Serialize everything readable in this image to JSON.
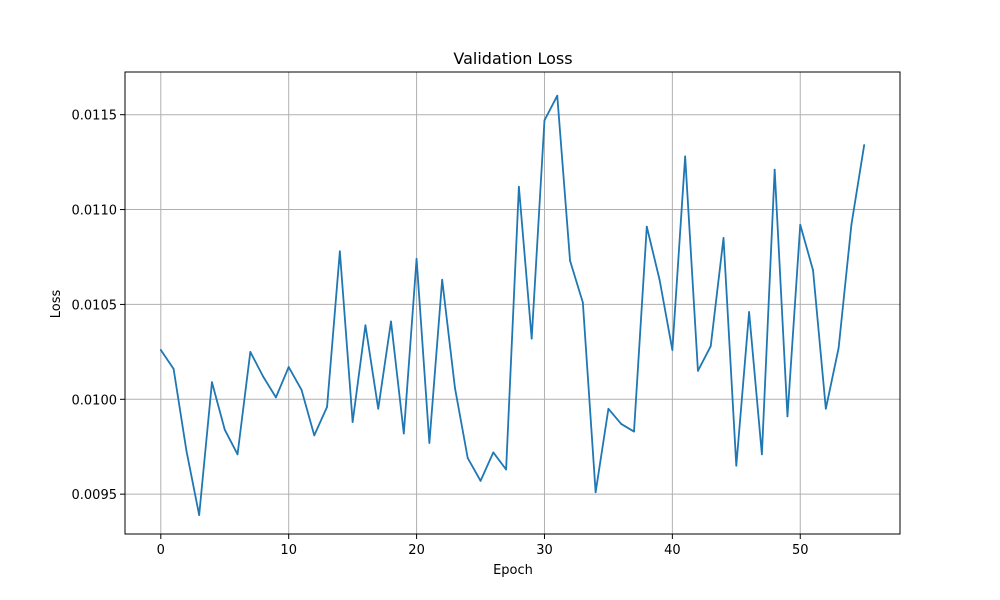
{
  "chart_data": {
    "type": "line",
    "title": "Validation Loss",
    "xlabel": "Epoch",
    "ylabel": "Loss",
    "xlim": [
      -2.8,
      57.8
    ],
    "ylim": [
      0.00929,
      0.011725
    ],
    "xticks": [
      0,
      10,
      20,
      30,
      40,
      50
    ],
    "xtick_labels": [
      "0",
      "10",
      "20",
      "30",
      "40",
      "50"
    ],
    "yticks": [
      0.0095,
      0.01,
      0.0105,
      0.011,
      0.0115
    ],
    "ytick_labels": [
      "0.0095",
      "0.0100",
      "0.0105",
      "0.0110",
      "0.0115"
    ],
    "grid": true,
    "line_color": "#1f77b4",
    "series": [
      {
        "x": [
          0,
          1,
          2,
          3,
          4,
          5,
          6,
          7,
          8,
          9,
          10,
          11,
          12,
          13,
          14,
          15,
          16,
          17,
          18,
          19,
          20,
          21,
          22,
          23,
          24,
          25,
          26,
          27,
          28,
          29,
          30,
          31,
          32,
          33,
          34,
          35,
          36,
          37,
          38,
          39,
          40,
          41,
          42,
          43,
          44,
          45,
          46,
          47,
          48,
          49,
          50,
          51,
          52,
          53,
          54,
          55
        ],
        "values": [
          0.01026,
          0.01016,
          0.00973,
          0.00939,
          0.01009,
          0.00984,
          0.00971,
          0.01025,
          0.01012,
          0.01001,
          0.01017,
          0.01005,
          0.00981,
          0.00996,
          0.01078,
          0.00988,
          0.01039,
          0.00995,
          0.01041,
          0.00982,
          0.01074,
          0.00977,
          0.01063,
          0.01006,
          0.00969,
          0.00957,
          0.00972,
          0.00963,
          0.01112,
          0.01032,
          0.01147,
          0.0116,
          0.01073,
          0.01051,
          0.00951,
          0.00995,
          0.00987,
          0.00983,
          0.01091,
          0.01063,
          0.01026,
          0.01128,
          0.01015,
          0.01028,
          0.01085,
          0.00965,
          0.01046,
          0.00971,
          0.01121,
          0.00991,
          0.01092,
          0.01068,
          0.00995,
          0.01027,
          0.01092,
          0.01134
        ]
      }
    ]
  }
}
